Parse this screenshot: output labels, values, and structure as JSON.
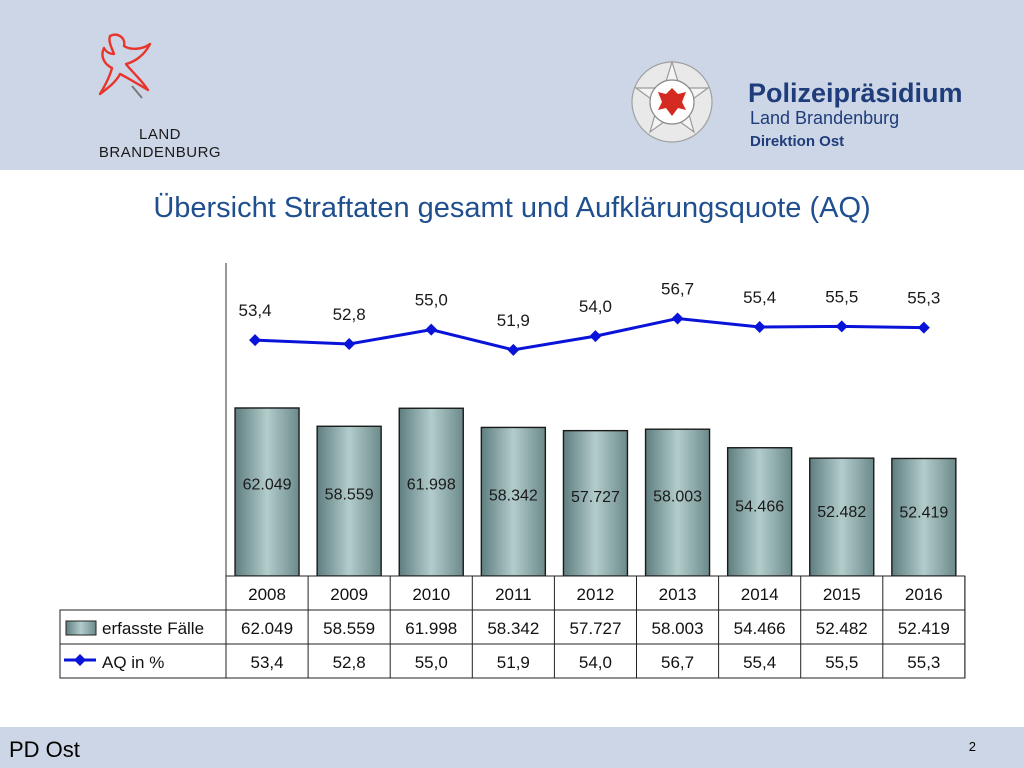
{
  "header": {
    "brand_line1": "LAND",
    "brand_line2": "BRANDENBURG",
    "police_title": "Polizeipräsidium",
    "police_subtitle": "Land Brandenburg",
    "police_direction": "Direktion Ost",
    "background": "#ccd6e6",
    "brand_color": "#1f3d7a",
    "eagle_color": "#e8352b"
  },
  "slide": {
    "title": "Übersicht Straftaten gesamt und Aufklärungsquote (AQ)"
  },
  "chart_data": {
    "type": "bar",
    "categories": [
      "2008",
      "2009",
      "2010",
      "2011",
      "2012",
      "2013",
      "2014",
      "2015",
      "2016"
    ],
    "series": [
      {
        "name": "erfasste Fälle",
        "type": "bar",
        "values": [
          62049,
          58559,
          61998,
          58342,
          57727,
          58003,
          54466,
          52482,
          52419
        ],
        "labels": [
          "62.049",
          "58.559",
          "61.998",
          "58.342",
          "57.727",
          "58.003",
          "54.466",
          "52.482",
          "52.419"
        ],
        "color": "#7e9c9c"
      },
      {
        "name": "AQ in %",
        "type": "line",
        "values": [
          53.4,
          52.8,
          55.0,
          51.9,
          54.0,
          56.7,
          55.4,
          55.5,
          55.3
        ],
        "labels": [
          "53,4",
          "52,8",
          "55,0",
          "51,9",
          "54,0",
          "56,7",
          "55,4",
          "55,5",
          "55,3"
        ],
        "color": "#0a14d8"
      }
    ],
    "data_table": true,
    "grid": false
  },
  "footer": {
    "left": "PD Ost",
    "page_number": "2",
    "background": "#ccd6e6"
  }
}
